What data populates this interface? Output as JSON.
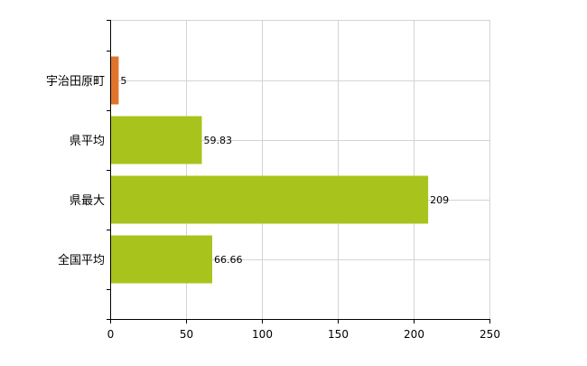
{
  "chart_data": {
    "type": "bar",
    "orientation": "horizontal",
    "categories": [
      "宇治田原町",
      "県平均",
      "県最大",
      "全国平均"
    ],
    "values": [
      5,
      59.83,
      209,
      66.66
    ],
    "value_labels": [
      "5",
      "59.83",
      "209",
      "66.66"
    ],
    "bar_colors": [
      "#e0742a",
      "#a8c41c",
      "#a8c41c",
      "#a8c41c"
    ],
    "xlim": [
      0,
      250
    ],
    "x_ticks": [
      0,
      50,
      100,
      150,
      200,
      250
    ],
    "x_tick_labels": [
      "0",
      "50",
      "100",
      "150",
      "200",
      "250"
    ],
    "title": "",
    "xlabel": "",
    "ylabel": "",
    "grid": true,
    "legend": "none"
  }
}
